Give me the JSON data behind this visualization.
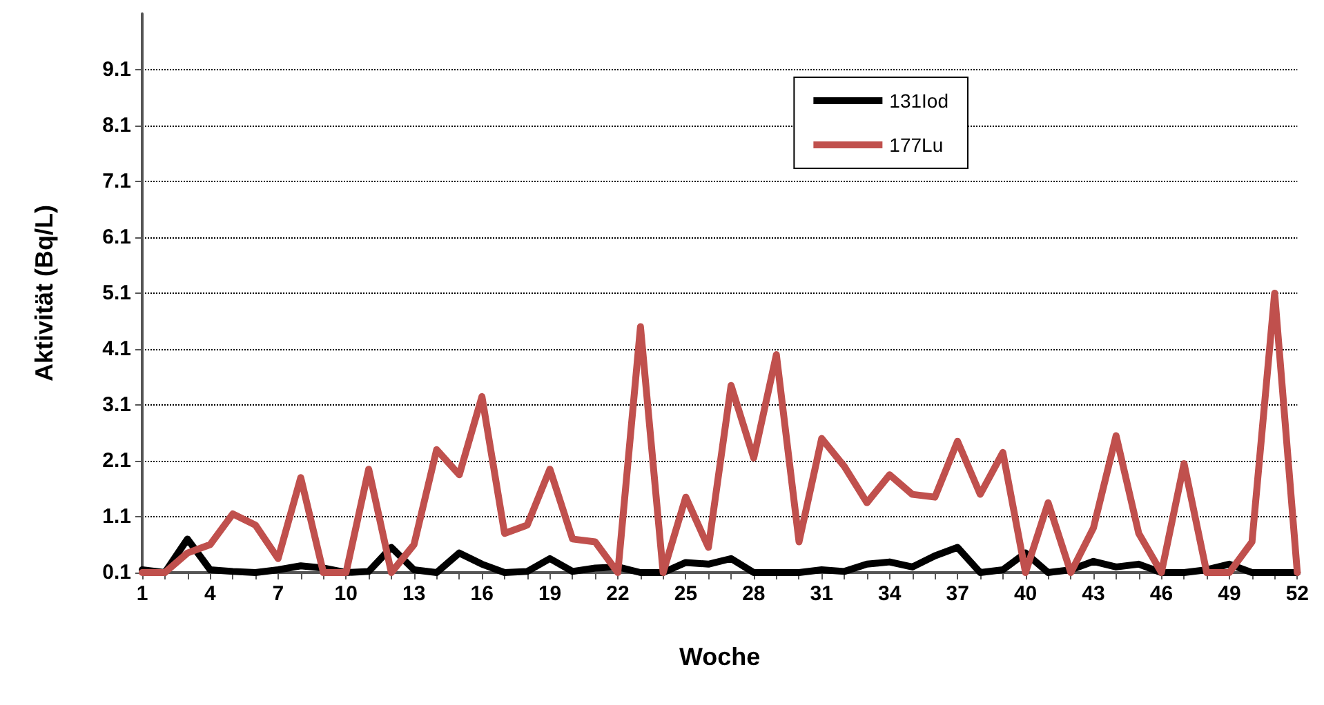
{
  "chart_data": {
    "type": "line",
    "xlabel": "Woche",
    "ylabel": "Aktivität (Bq/L)",
    "categories": [
      "1",
      null,
      null,
      "4",
      null,
      null,
      "7",
      null,
      null,
      "10",
      null,
      null,
      "13",
      null,
      null,
      "16",
      null,
      null,
      "19",
      null,
      null,
      "22",
      null,
      null,
      "25",
      null,
      null,
      "28",
      null,
      null,
      "31",
      null,
      null,
      "34",
      null,
      null,
      "37",
      null,
      null,
      "40",
      null,
      null,
      "43",
      null,
      null,
      "46",
      null,
      null,
      "49",
      null,
      null,
      "52"
    ],
    "series": [
      {
        "name": "131Iod",
        "color": "#000000",
        "values": [
          0.15,
          0.1,
          0.7,
          0.15,
          0.12,
          0.1,
          0.15,
          0.22,
          0.18,
          0.1,
          0.12,
          0.55,
          0.15,
          0.1,
          0.45,
          0.25,
          0.1,
          0.12,
          0.35,
          0.12,
          0.18,
          0.2,
          0.1,
          0.1,
          0.28,
          0.25,
          0.35,
          0.1,
          0.1,
          0.1,
          0.15,
          0.12,
          0.25,
          0.29,
          0.2,
          0.4,
          0.55,
          0.1,
          0.15,
          0.45,
          0.1,
          0.15,
          0.3,
          0.2,
          0.25,
          0.1,
          0.1,
          0.15,
          0.25,
          0.1,
          0.1,
          0.1
        ]
      },
      {
        "name": "177Lu",
        "color": "#c0504d",
        "values": [
          0.1,
          0.1,
          0.45,
          0.6,
          1.15,
          0.95,
          0.35,
          1.8,
          0.1,
          0.1,
          1.95,
          0.1,
          0.6,
          2.3,
          1.85,
          3.25,
          0.8,
          0.95,
          1.95,
          0.7,
          0.65,
          0.1,
          4.5,
          0.1,
          1.45,
          0.55,
          3.45,
          2.15,
          4.0,
          0.65,
          2.5,
          2.0,
          1.35,
          1.85,
          1.5,
          1.45,
          2.45,
          1.5,
          2.25,
          0.1,
          1.35,
          0.1,
          0.9,
          2.55,
          0.8,
          0.1,
          2.05,
          0.1,
          0.1,
          0.65,
          5.1,
          0.1
        ]
      }
    ],
    "ylim": [
      0.1,
      10.1
    ],
    "yticks": [
      0.1,
      1.1,
      2.1,
      3.1,
      4.1,
      5.1,
      6.1,
      7.1,
      8.1,
      9.1
    ],
    "grid": "y",
    "legend": "top right",
    "marker": "none",
    "line_style": "solid"
  }
}
